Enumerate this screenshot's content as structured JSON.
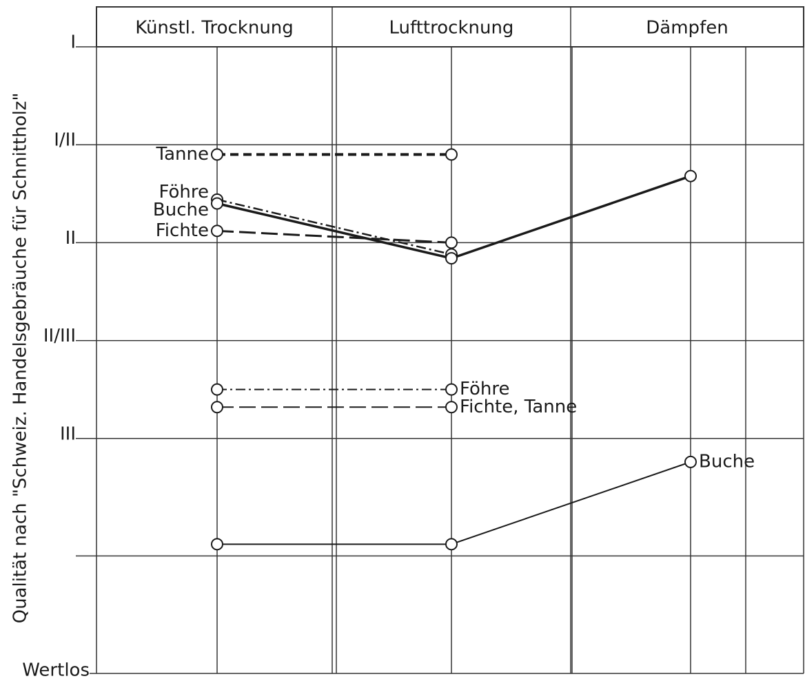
{
  "chart_data": {
    "type": "line",
    "y_axis_label": "Qualität nach \"Schweiz. Handelsgebräuche für Schnittholz\"",
    "categories": [
      "Künstl. Trocknung",
      "Lufttrocknung",
      "Dämpfen"
    ],
    "ylim": [
      4.2,
      1
    ],
    "yticks": [
      {
        "value": 1,
        "label": "I"
      },
      {
        "value": 1.5,
        "label": "I/II"
      },
      {
        "value": 2,
        "label": "II"
      },
      {
        "value": 2.5,
        "label": "II/III"
      },
      {
        "value": 3,
        "label": "III"
      },
      {
        "value": 3.6,
        "label": null
      },
      {
        "value": 4.2,
        "label": "Wertlos"
      }
    ],
    "grid": true,
    "series": [
      {
        "name": "Tanne",
        "color": "#1a1a1a",
        "dash": "12,7",
        "width": 4,
        "label_side": "left",
        "values": [
          1.55,
          1.55,
          null
        ]
      },
      {
        "name": "Föhre",
        "color": "#1a1a1a",
        "dash": "14,5,3,5",
        "width": 2.5,
        "label_side": "left",
        "values": [
          1.78,
          2.06,
          null
        ]
      },
      {
        "name": "Buche",
        "color": "#1a1a1a",
        "dash": "none",
        "width": 3.5,
        "label_side": "left",
        "values": [
          1.8,
          2.08,
          1.66
        ]
      },
      {
        "name": "Fichte",
        "color": "#1a1a1a",
        "dash": "24,8",
        "width": 3,
        "label_side": "left",
        "values": [
          1.94,
          2.0,
          null
        ]
      },
      {
        "name": "Föhre",
        "color": "#1a1a1a",
        "dash": "14,5,3,5",
        "width": 2,
        "label_side": "right",
        "values": [
          2.75,
          2.75,
          null
        ]
      },
      {
        "name": "Fichte, Tanne",
        "color": "#1a1a1a",
        "dash": "24,8",
        "width": 2,
        "label_side": "right",
        "values": [
          2.84,
          2.84,
          null
        ]
      },
      {
        "name": "Buche",
        "color": "#1a1a1a",
        "dash": "none",
        "width": 2,
        "label_side": "right",
        "values": [
          3.54,
          3.54,
          3.12
        ]
      }
    ]
  }
}
